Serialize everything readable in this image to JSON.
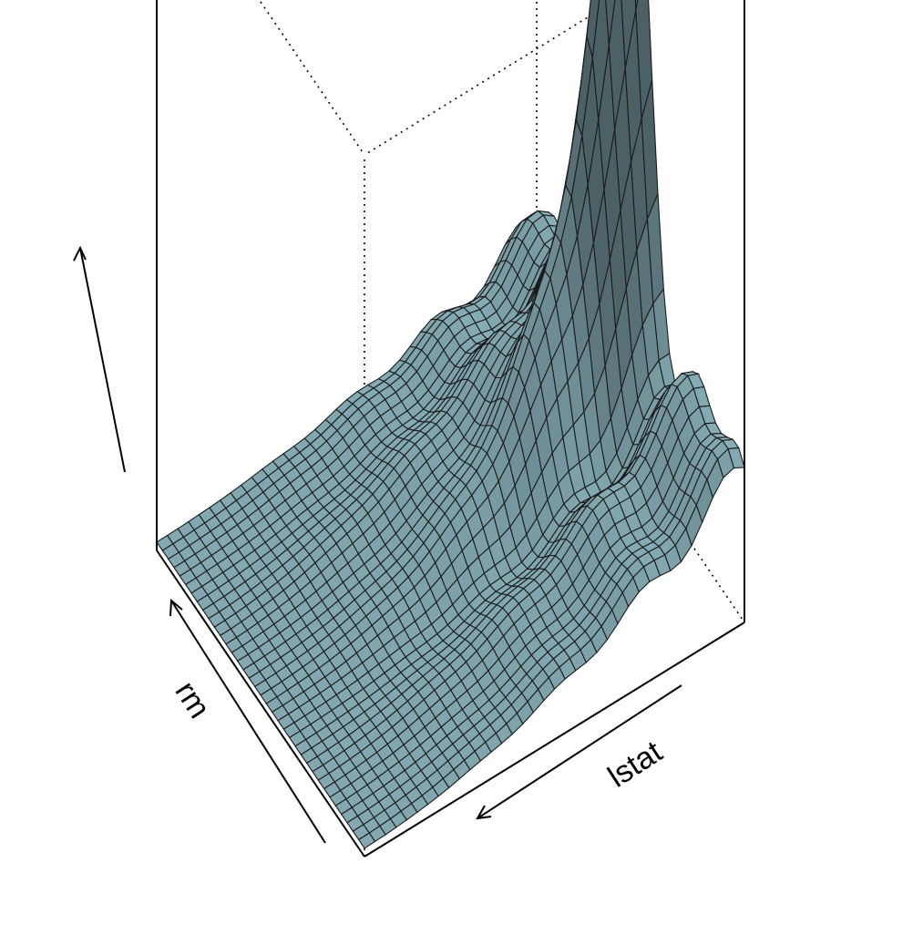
{
  "chart_data": {
    "type": "surface3d",
    "title": "",
    "xlabel": "lstat",
    "ylabel": "rm",
    "zlabel": "",
    "grid": {
      "nx": 36,
      "ny": 36
    },
    "box": "full",
    "ticks": "none",
    "axis_arrows": true,
    "surface_color": "#a8d8e3",
    "line_color": "#1b1b1b",
    "shading": "light-source"
  }
}
